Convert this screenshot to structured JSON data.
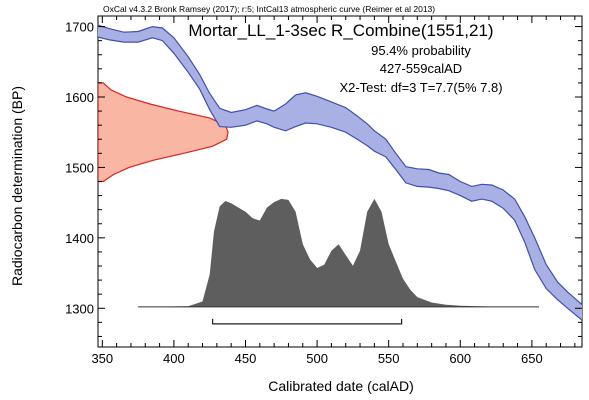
{
  "chart_data": {
    "type": "area",
    "header": "OxCal v4.3.2 Bronk Ramsey (2017); r:5; IntCal13 atmospheric curve (Reimer et al 2013)",
    "title": "Mortar_LL_1-3sec R_Combine(1551,21)",
    "annotations": [
      "95.4% probability",
      "427-559calAD",
      "X2-Test: df=3 T=7.7(5% 7.8)"
    ],
    "xlabel": "Calibrated date (calAD)",
    "ylabel": "Radiocarbon determination (BP)",
    "xlim": [
      347,
      685
    ],
    "ylim": [
      1245,
      1715
    ],
    "x_ticks": [
      350,
      400,
      450,
      500,
      550,
      600,
      650
    ],
    "y_ticks": [
      1300,
      1400,
      1500,
      1600,
      1700
    ],
    "grid": false,
    "calibration_curve": {
      "x": [
        347,
        355,
        365,
        375,
        385,
        392,
        400,
        410,
        418,
        425,
        432,
        440,
        450,
        458,
        465,
        470,
        478,
        485,
        492,
        500,
        510,
        520,
        528,
        535,
        540,
        548,
        555,
        562,
        570,
        578,
        585,
        592,
        600,
        608,
        615,
        622,
        630,
        638,
        645,
        652,
        660,
        668,
        675,
        685
      ],
      "upper": [
        1702,
        1697,
        1692,
        1693,
        1700,
        1698,
        1684,
        1657,
        1632,
        1605,
        1584,
        1578,
        1582,
        1588,
        1583,
        1580,
        1590,
        1603,
        1606,
        1601,
        1593,
        1585,
        1573,
        1562,
        1552,
        1540,
        1520,
        1501,
        1498,
        1497,
        1492,
        1490,
        1480,
        1473,
        1476,
        1475,
        1468,
        1455,
        1430,
        1400,
        1362,
        1337,
        1323,
        1305
      ],
      "lower": [
        1685,
        1681,
        1678,
        1678,
        1684,
        1680,
        1662,
        1635,
        1611,
        1582,
        1558,
        1557,
        1560,
        1566,
        1562,
        1557,
        1552,
        1558,
        1563,
        1562,
        1557,
        1550,
        1540,
        1531,
        1523,
        1515,
        1497,
        1478,
        1473,
        1472,
        1470,
        1467,
        1460,
        1452,
        1455,
        1452,
        1442,
        1425,
        1394,
        1355,
        1328,
        1312,
        1300,
        1283
      ]
    },
    "measurement_distribution": {
      "bp": [
        1480,
        1490,
        1500,
        1510,
        1520,
        1530,
        1540,
        1550,
        1560,
        1570,
        1580,
        1590,
        1600,
        1610,
        1620
      ],
      "density": [
        0.04,
        0.12,
        0.24,
        0.42,
        0.66,
        0.88,
        0.99,
        1.0,
        0.98,
        0.86,
        0.62,
        0.4,
        0.22,
        0.1,
        0.04
      ]
    },
    "posterior_distribution": {
      "x": [
        375,
        410,
        420,
        425,
        428,
        432,
        436,
        440,
        445,
        450,
        455,
        460,
        465,
        470,
        475,
        480,
        485,
        490,
        495,
        500,
        505,
        510,
        515,
        520,
        525,
        530,
        535,
        540,
        545,
        550,
        555,
        560,
        565,
        570,
        580,
        590,
        600,
        620,
        655
      ],
      "density": [
        0,
        0.005,
        0.05,
        0.3,
        0.7,
        0.93,
        0.98,
        0.96,
        0.92,
        0.88,
        0.82,
        0.8,
        0.92,
        0.97,
        1.0,
        0.99,
        0.88,
        0.58,
        0.44,
        0.36,
        0.39,
        0.52,
        0.58,
        0.48,
        0.38,
        0.52,
        0.88,
        1.0,
        0.88,
        0.58,
        0.42,
        0.26,
        0.16,
        0.09,
        0.04,
        0.02,
        0.01,
        0.003,
        0
      ]
    },
    "range_95": [
      427,
      559
    ],
    "colors": {
      "curve_fill": "#a9b0e3",
      "curve_line": "#3f4fb0",
      "measurement_fill": "#f9b7a3",
      "measurement_line": "#dd2020",
      "posterior_fill": "#5e5e5e",
      "axis": "#000000"
    }
  }
}
